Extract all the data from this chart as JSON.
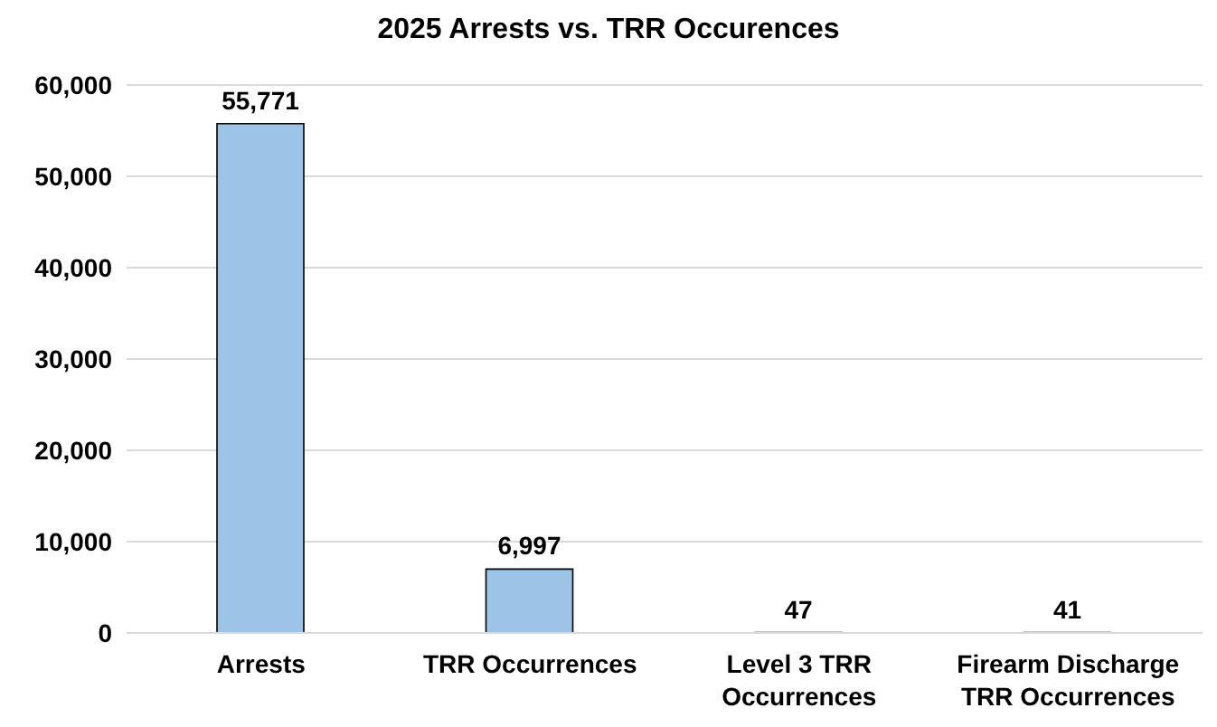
{
  "chart_data": {
    "type": "bar",
    "title": "2025 Arrests vs. TRR Occurences",
    "categories": [
      "Arrests",
      "TRR Occurrences",
      "Level 3 TRR Occurrences",
      "Firearm Discharge TRR Occurrences"
    ],
    "values": [
      55771,
      6997,
      47,
      41
    ],
    "color": "#9dc3e6",
    "value_labels": [
      "55,771",
      "6,997",
      "47",
      "41"
    ],
    "ylim": [
      0,
      60000
    ],
    "yticks": [
      0,
      {
        "value": 10000,
        "label": "10,000"
      },
      {
        "value": 20000,
        "label": "20,000"
      },
      {
        "value": 30000,
        "label": "30,000"
      },
      {
        "value": 40000,
        "label": "40,000"
      },
      {
        "value": 50000,
        "label": "50,000"
      },
      {
        "value": 60000,
        "label": "60,000"
      }
    ],
    "grid": "y"
  }
}
